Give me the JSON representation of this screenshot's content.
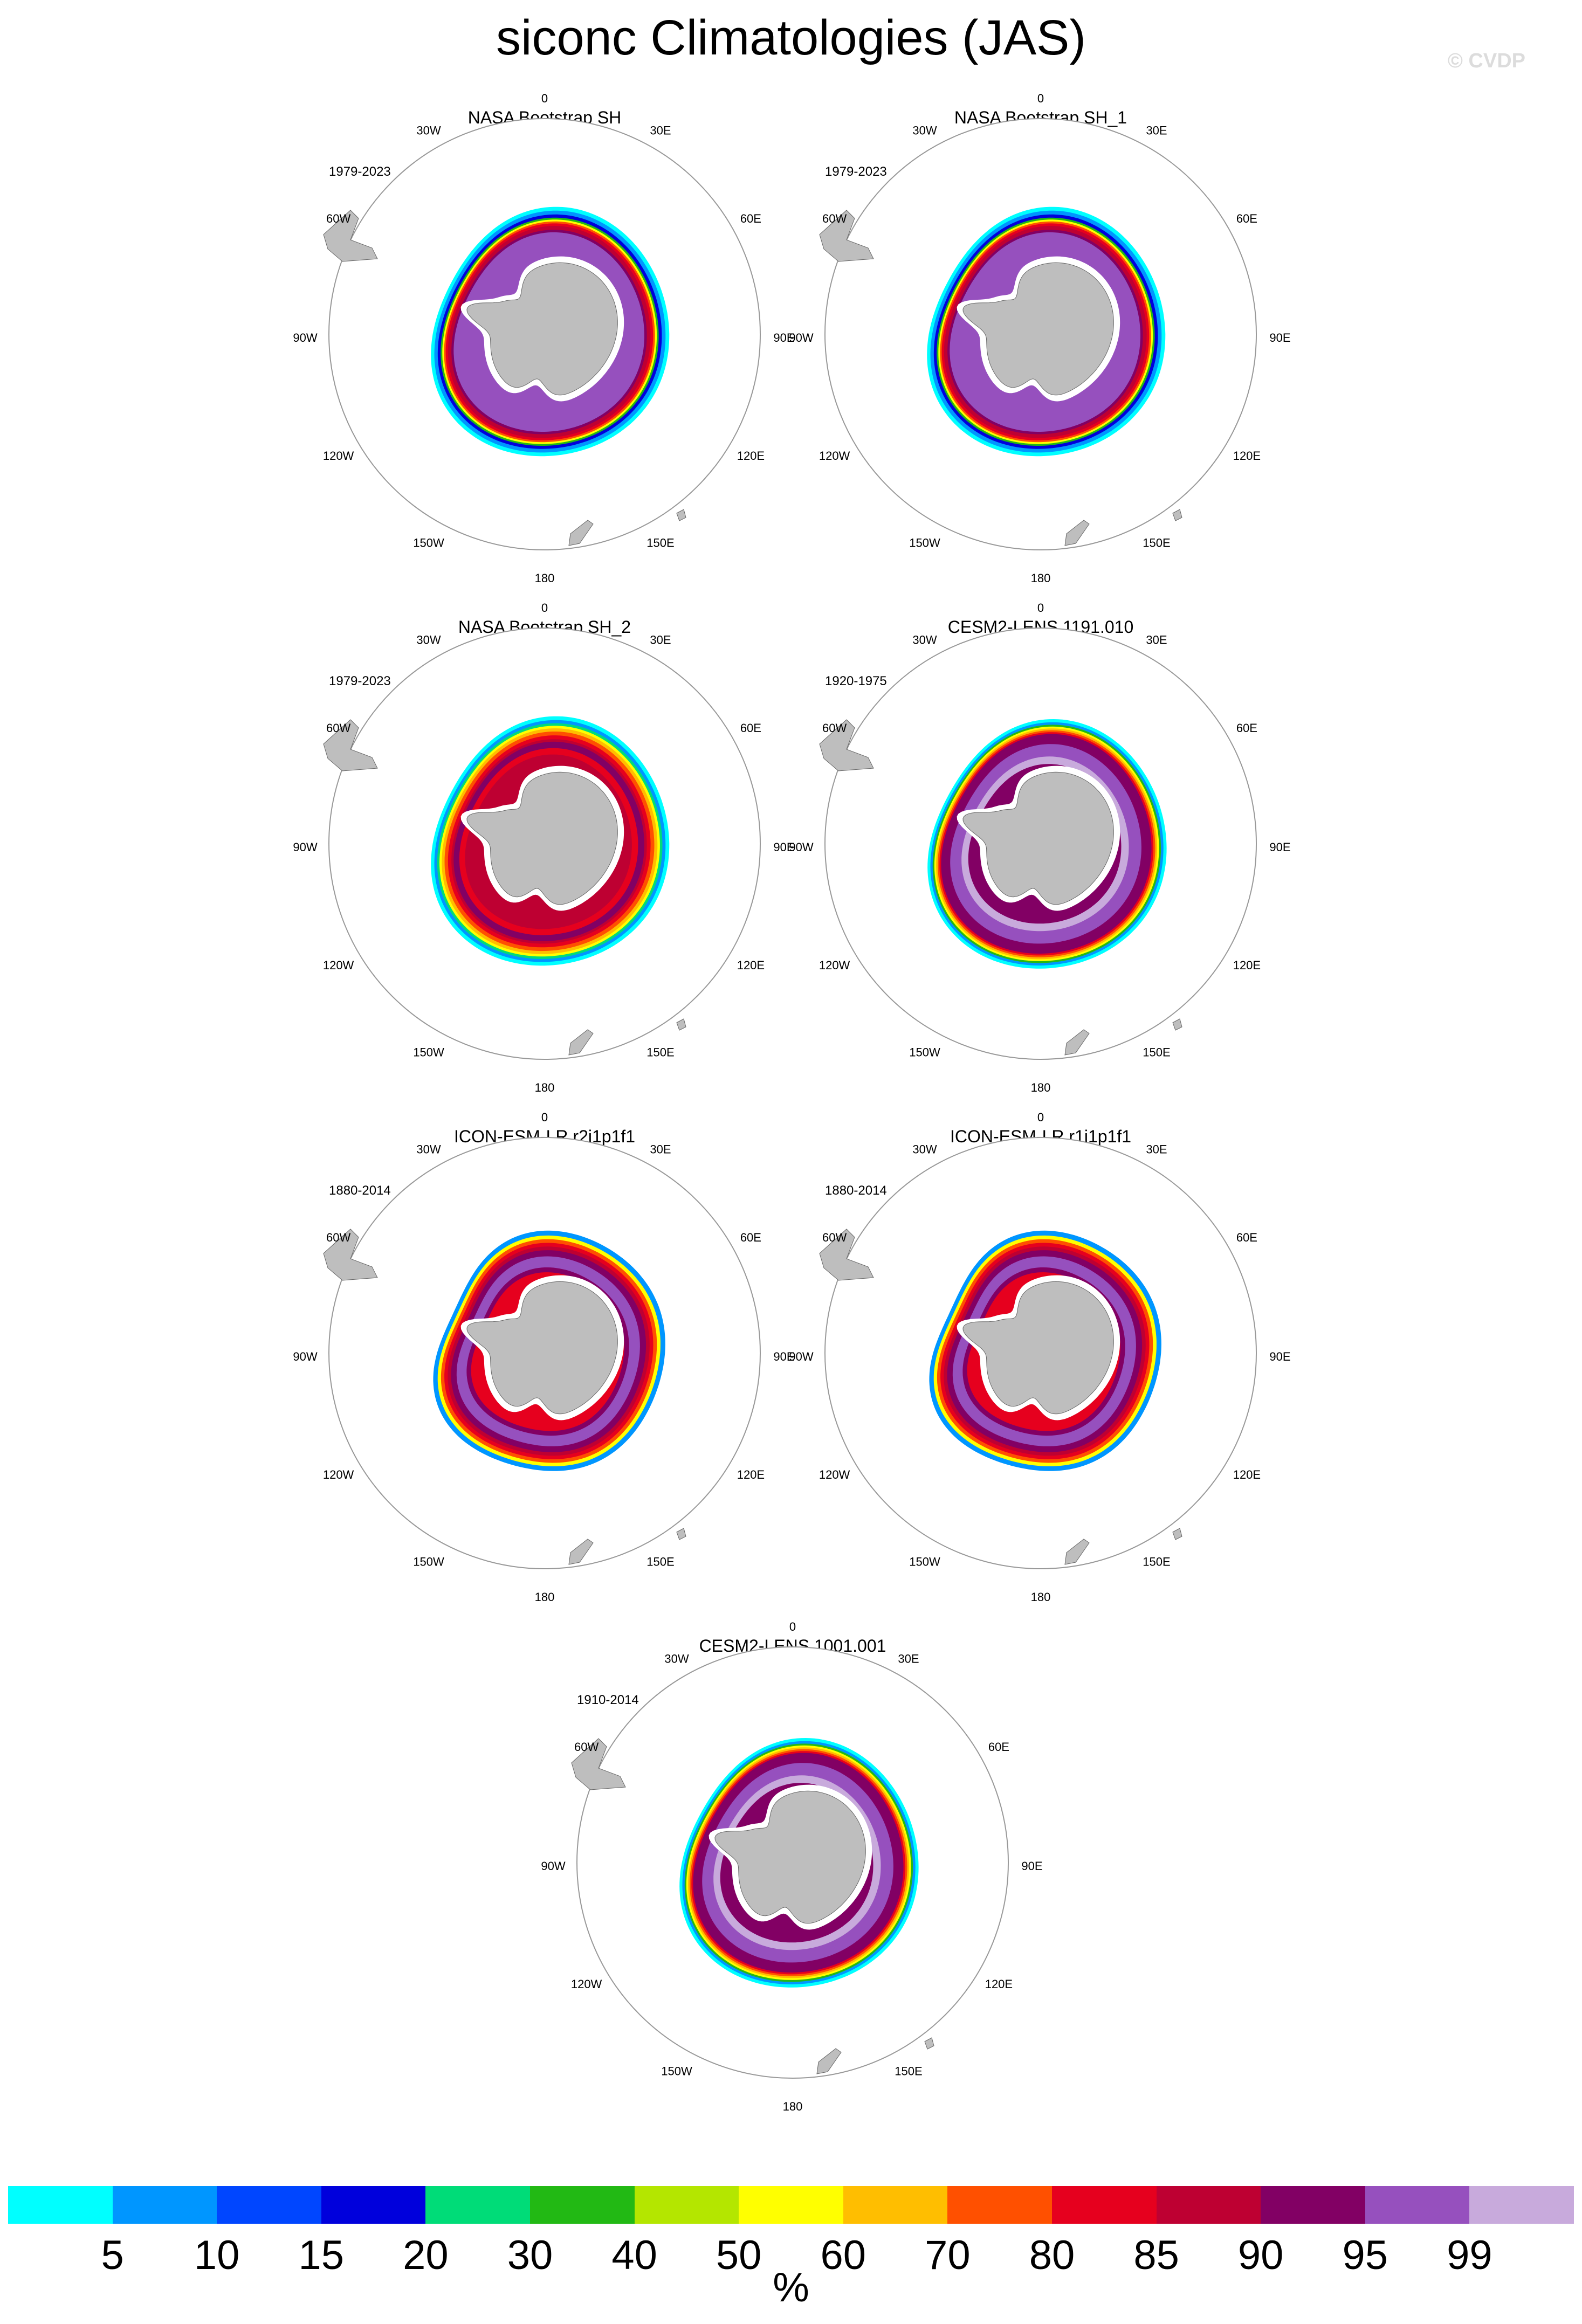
{
  "title": "siconc Climatologies (JAS)",
  "watermark": "© CVDP",
  "longitude_labels": [
    "0",
    "30E",
    "60E",
    "90E",
    "120E",
    "150E",
    "180",
    "150W",
    "120W",
    "90W",
    "60W",
    "30W"
  ],
  "panels": [
    {
      "title": "NASA Bootstrap SH",
      "period": "1979-2023",
      "style": "obs"
    },
    {
      "title": "NASA Bootstrap SH_1",
      "period": "1979-2023",
      "style": "obs"
    },
    {
      "title": "NASA Bootstrap SH_2",
      "period": "1979-2023",
      "style": "obs2"
    },
    {
      "title": "CESM2-LENS 1191.010",
      "period": "1920-1975",
      "style": "cesm"
    },
    {
      "title": "ICON-ESM-LR r2i1p1f1",
      "period": "1880-2014",
      "style": "icon"
    },
    {
      "title": "ICON-ESM-LR r1i1p1f1",
      "period": "1880-2014",
      "style": "icon"
    },
    {
      "title": "CESM2-LENS 1001.001",
      "period": "1910-2014",
      "style": "cesm"
    }
  ],
  "colorbar": {
    "unit": "%",
    "tick_labels": [
      "5",
      "10",
      "15",
      "20",
      "30",
      "40",
      "50",
      "60",
      "70",
      "80",
      "85",
      "90",
      "95",
      "99"
    ],
    "colors": [
      "#00ffff",
      "#0096ff",
      "#0046ff",
      "#0000dc",
      "#00dc78",
      "#22b914",
      "#b4e600",
      "#ffff00",
      "#ffbe00",
      "#ff5000",
      "#e6001e",
      "#be0032",
      "#820064",
      "#9650be",
      "#c8aadc"
    ]
  }
}
